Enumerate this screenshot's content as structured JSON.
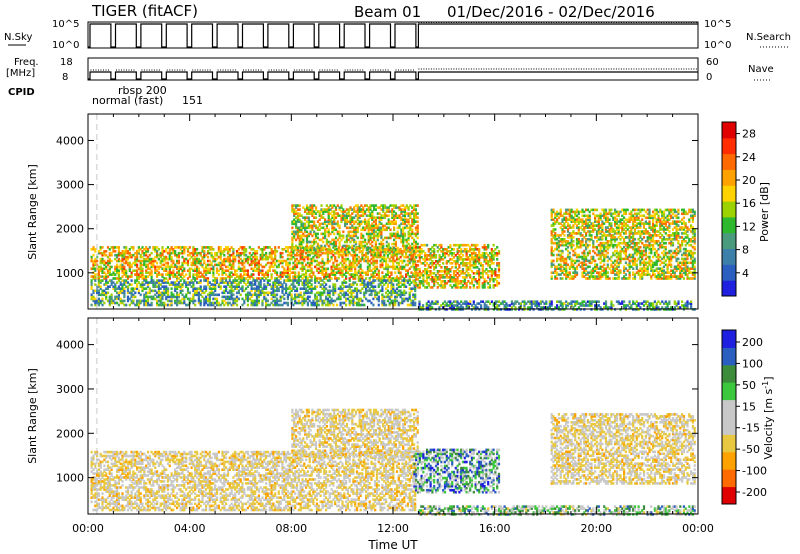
{
  "header": {
    "station_title": "TIGER (fitACF)",
    "beam_title": "Beam 01",
    "date_range": "01/Dec/2016 - 02/Dec/2016"
  },
  "status_panels": {
    "nsky_label": "N.Sky",
    "nsky_ticks": [
      "10^5",
      "10^0"
    ],
    "nsearch_label": "N.Search",
    "nsearch_ticks": [
      "10^5",
      "10^0"
    ],
    "freq_label_1": "Freq.",
    "freq_label_2": "[MHz]",
    "freq_ticks": [
      "18",
      "8"
    ],
    "nave_label": "Nave",
    "nave_ticks": [
      "60",
      "0"
    ],
    "cpid_label": "CPID",
    "cpid_entries": [
      "rbsp 200",
      "normal (fast)",
      "151"
    ]
  },
  "colors": {
    "power_scale": [
      "#1f1fe0",
      "#2a5fc0",
      "#3c7fa8",
      "#4a9a7e",
      "#2eb82e",
      "#9bd200",
      "#ffd200",
      "#ffa200",
      "#ff6a00",
      "#ff2d00",
      "#e00000"
    ],
    "velocity_scale": [
      "#e00000",
      "#ff6a00",
      "#ffa200",
      "#e8c840",
      "#c8c8c8",
      "#c8c8c8",
      "#3cc83c",
      "#3c8c3c",
      "#2a5fc0",
      "#1f1fe0"
    ]
  },
  "chart_data": [
    {
      "type": "heatmap",
      "panel": "power",
      "ylabel": "Slant Range [km]",
      "xlim": [
        0,
        24
      ],
      "ylim": [
        180,
        4600
      ],
      "y_ticks": [
        "1000",
        "2000",
        "3000",
        "4000"
      ],
      "x_ticks": [
        "00:00",
        "04:00",
        "08:00",
        "12:00",
        "16:00",
        "20:00",
        "00:00"
      ],
      "colorbar": {
        "label": "Power [dB]",
        "range": [
          0,
          30
        ],
        "ticks": [
          "4",
          "8",
          "12",
          "16",
          "20",
          "24",
          "28"
        ]
      },
      "echo_regions": [
        {
          "t0": 0.1,
          "t1": 12.9,
          "r0": 900,
          "r1": 1650,
          "level": 0.6
        },
        {
          "t0": 0.1,
          "t1": 12.9,
          "r0": 300,
          "r1": 900,
          "level": 0.35
        },
        {
          "t0": 8.0,
          "t1": 13.0,
          "r0": 1500,
          "r1": 2600,
          "level": 0.55
        },
        {
          "t0": 12.8,
          "t1": 16.2,
          "r0": 700,
          "r1": 1700,
          "level": 0.6
        },
        {
          "t0": 18.2,
          "t1": 23.9,
          "r0": 900,
          "r1": 2500,
          "level": 0.55
        },
        {
          "t0": 13.0,
          "t1": 23.9,
          "r0": 200,
          "r1": 420,
          "level": 0.3
        }
      ]
    },
    {
      "type": "heatmap",
      "panel": "velocity",
      "ylabel": "Slant Range [km]",
      "xlabel": "Time UT",
      "xlim": [
        0,
        24
      ],
      "ylim": [
        180,
        4600
      ],
      "y_ticks": [
        "1000",
        "2000",
        "3000",
        "4000"
      ],
      "x_ticks": [
        "00:00",
        "04:00",
        "08:00",
        "12:00",
        "16:00",
        "20:00",
        "00:00"
      ],
      "colorbar": {
        "label": "Velocity [m s",
        "label_superscript": "-1",
        "label_end": "]",
        "range": [
          -250,
          250
        ],
        "ticks": [
          "200",
          "100",
          "50",
          "15",
          "-15",
          "-50",
          "-100",
          "-200"
        ]
      },
      "echo_regions": [
        {
          "t0": 0.1,
          "t1": 12.9,
          "r0": 900,
          "r1": 1650,
          "level": 0.5
        },
        {
          "t0": 0.1,
          "t1": 12.9,
          "r0": 300,
          "r1": 900,
          "level": 0.35
        },
        {
          "t0": 8.0,
          "t1": 13.0,
          "r0": 1500,
          "r1": 2600,
          "level": 0.5
        },
        {
          "t0": 12.8,
          "t1": 16.2,
          "r0": 700,
          "r1": 1700,
          "level": 0.7
        },
        {
          "t0": 18.2,
          "t1": 23.9,
          "r0": 900,
          "r1": 2500,
          "level": 0.5
        },
        {
          "t0": 13.0,
          "t1": 23.9,
          "r0": 200,
          "r1": 420,
          "level": 0.6
        }
      ]
    }
  ]
}
